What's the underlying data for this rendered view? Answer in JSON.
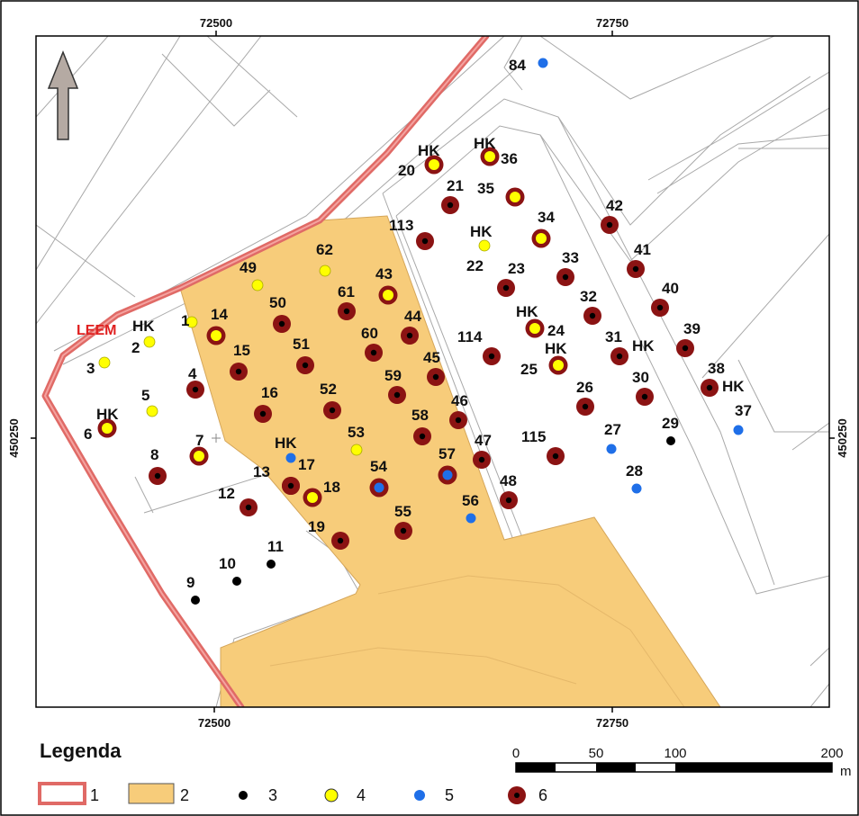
{
  "map": {
    "coords": {
      "top": [
        "72500",
        "72750"
      ],
      "bottom": [
        "72500",
        "72750"
      ],
      "left": "450250",
      "right": "450250"
    },
    "marker_labels": {
      "leem": "LEEM",
      "hk": "HK"
    },
    "wells": [
      {
        "id": "1",
        "type": 4
      },
      {
        "id": "2",
        "type": 4
      },
      {
        "id": "3",
        "type": 4
      },
      {
        "id": "4",
        "type": 6
      },
      {
        "id": "5",
        "type": 4
      },
      {
        "id": "6",
        "type": "ring"
      },
      {
        "id": "7",
        "type": "ring"
      },
      {
        "id": "8",
        "type": 6
      },
      {
        "id": "9",
        "type": 3
      },
      {
        "id": "10",
        "type": 3
      },
      {
        "id": "11",
        "type": 3
      },
      {
        "id": "12",
        "type": 6
      },
      {
        "id": "13",
        "type": 6
      },
      {
        "id": "14",
        "type": "ring"
      },
      {
        "id": "15",
        "type": 6
      },
      {
        "id": "16",
        "type": 6
      },
      {
        "id": "17",
        "type": 6
      },
      {
        "id": "18",
        "type": "ring"
      },
      {
        "id": "19",
        "type": 6
      },
      {
        "id": "20",
        "type": "ring"
      },
      {
        "id": "21",
        "type": 6
      },
      {
        "id": "22",
        "type": 4
      },
      {
        "id": "23",
        "type": 6
      },
      {
        "id": "24",
        "type": "ring"
      },
      {
        "id": "25",
        "type": "ring"
      },
      {
        "id": "26",
        "type": 6
      },
      {
        "id": "27",
        "type": 5
      },
      {
        "id": "28",
        "type": 5
      },
      {
        "id": "29",
        "type": 3
      },
      {
        "id": "30",
        "type": 6
      },
      {
        "id": "31",
        "type": 6
      },
      {
        "id": "32",
        "type": 6
      },
      {
        "id": "33",
        "type": 6
      },
      {
        "id": "34",
        "type": "ring"
      },
      {
        "id": "35",
        "type": "ring"
      },
      {
        "id": "36",
        "type": "ring"
      },
      {
        "id": "37",
        "type": 5
      },
      {
        "id": "38",
        "type": 6
      },
      {
        "id": "39",
        "type": 6
      },
      {
        "id": "40",
        "type": 6
      },
      {
        "id": "41",
        "type": 6
      },
      {
        "id": "42",
        "type": 6
      },
      {
        "id": "43",
        "type": "ring"
      },
      {
        "id": "44",
        "type": 6
      },
      {
        "id": "45",
        "type": 6
      },
      {
        "id": "46",
        "type": 6
      },
      {
        "id": "47",
        "type": 6
      },
      {
        "id": "48",
        "type": 6
      },
      {
        "id": "49",
        "type": 4
      },
      {
        "id": "50",
        "type": 6
      },
      {
        "id": "51",
        "type": 6
      },
      {
        "id": "52",
        "type": 6
      },
      {
        "id": "53",
        "type": 4
      },
      {
        "id": "54",
        "type": "blue-ring"
      },
      {
        "id": "55",
        "type": 6
      },
      {
        "id": "56",
        "type": 5
      },
      {
        "id": "57",
        "type": "blue-ring"
      },
      {
        "id": "58",
        "type": 6
      },
      {
        "id": "59",
        "type": 6
      },
      {
        "id": "60",
        "type": 6
      },
      {
        "id": "61",
        "type": 6
      },
      {
        "id": "62",
        "type": 4
      },
      {
        "id": "84",
        "type": 5
      },
      {
        "id": "113",
        "type": 6
      },
      {
        "id": "114",
        "type": 6
      },
      {
        "id": "115",
        "type": 6
      },
      {
        "id": "HK-17",
        "type": 5
      }
    ]
  },
  "legend": {
    "title": "Legenda",
    "items": [
      {
        "num": "1",
        "kind": "boundary-line",
        "color": "#e06a66"
      },
      {
        "num": "2",
        "kind": "area",
        "color": "#f7cc7a"
      },
      {
        "num": "3",
        "kind": "dot",
        "color": "#000000"
      },
      {
        "num": "4",
        "kind": "dot",
        "color": "#ffff00"
      },
      {
        "num": "5",
        "kind": "dot",
        "color": "#1f6fe8"
      },
      {
        "num": "6",
        "kind": "dot",
        "color": "#8b1313"
      }
    ]
  },
  "scale": {
    "ticks": [
      "0",
      "50",
      "100",
      "200"
    ],
    "unit": "m"
  },
  "colors": {
    "boundary": "#e06a66",
    "area": "#f7cc7a",
    "black": "#000000",
    "yellow": "#ffff00",
    "blue": "#1f6fe8",
    "darkred": "#8b1313"
  }
}
